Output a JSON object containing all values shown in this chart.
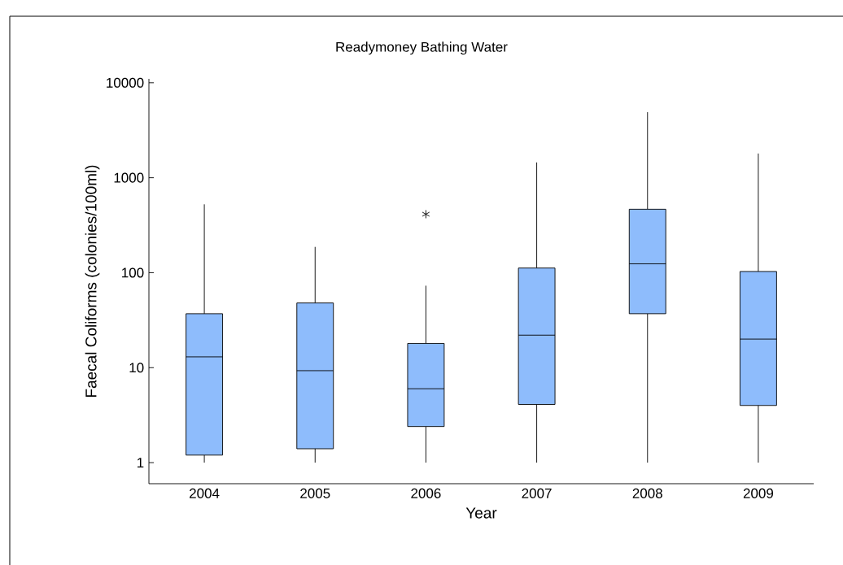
{
  "chart_data": {
    "type": "box",
    "title": "Readymoney Bathing Water",
    "xlabel": "Year",
    "ylabel": "Faecal Coliforms (colonies/100ml)",
    "categories": [
      "2004",
      "2005",
      "2006",
      "2007",
      "2008",
      "2009"
    ],
    "color": "#8ebcfc",
    "boxes": [
      {
        "low": 1,
        "q1": 1.2,
        "median": 13,
        "q3": 37,
        "high": 525
      },
      {
        "low": 1,
        "q1": 1.4,
        "median": 9.3,
        "q3": 48,
        "high": 187
      },
      {
        "low": 1,
        "q1": 2.4,
        "median": 6,
        "q3": 18,
        "high": 73,
        "outliers": [
          413
        ]
      },
      {
        "low": 1,
        "q1": 4.1,
        "median": 22,
        "q3": 112,
        "high": 1450
      },
      {
        "low": 1,
        "q1": 37,
        "median": 124,
        "q3": 466,
        "high": 4900
      },
      {
        "low": 1,
        "q1": 4,
        "median": 20,
        "q3": 103,
        "high": 1800
      }
    ],
    "log": true,
    "ylim": [
      0.6,
      11000
    ],
    "yticks": [
      1,
      10,
      100,
      1000,
      10000
    ],
    "marker": "star"
  }
}
